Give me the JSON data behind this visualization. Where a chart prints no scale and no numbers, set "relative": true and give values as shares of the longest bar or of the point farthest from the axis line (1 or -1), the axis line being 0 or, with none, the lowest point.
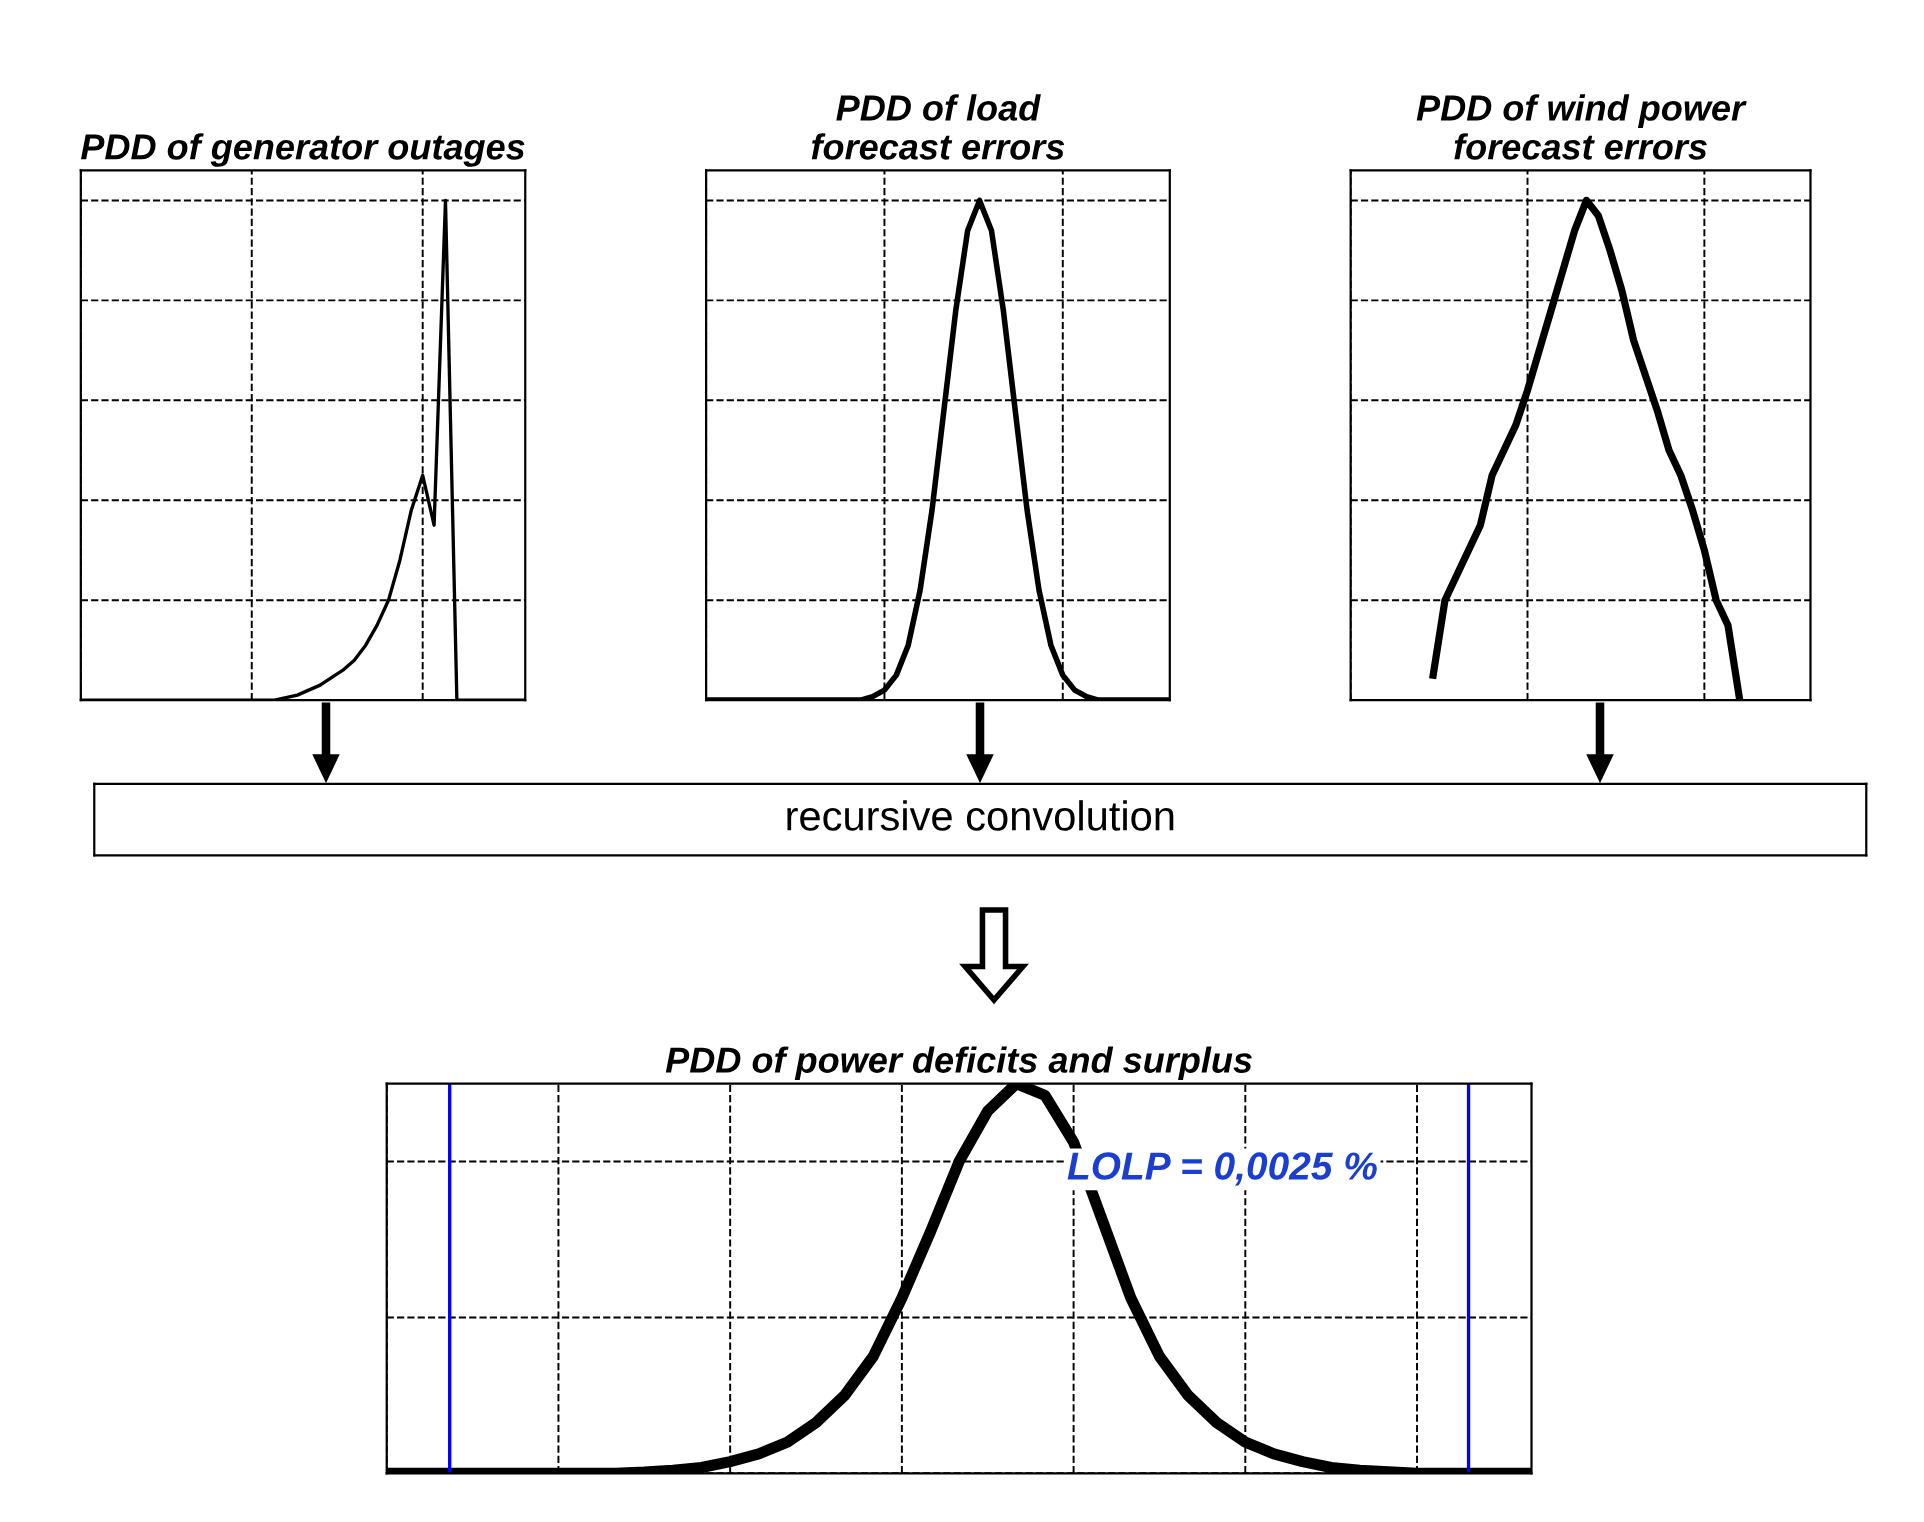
{
  "chart_data": [
    {
      "type": "line",
      "title": "PDD of generator outages",
      "relative": true,
      "grid": true,
      "marker": "none",
      "line_style": "solid",
      "categories": [
        null,
        null,
        null,
        null,
        null,
        null,
        null,
        null,
        null,
        null,
        null,
        null,
        null,
        null,
        null,
        null,
        null,
        null,
        null,
        null,
        null,
        null,
        null,
        null,
        null,
        null,
        null,
        null,
        null,
        null,
        null,
        null,
        null,
        null,
        null,
        null,
        null,
        null,
        null,
        null
      ],
      "series": [
        {
          "color": "#000000",
          "values": [
            0,
            0,
            0,
            0,
            0,
            0,
            0,
            0,
            0,
            0,
            0,
            0,
            0,
            0,
            0,
            0,
            0,
            0,
            0.005,
            0.01,
            0.02,
            0.03,
            0.045,
            0.06,
            0.08,
            0.11,
            0.15,
            0.2,
            0.28,
            0.38,
            0.45,
            0.35,
            1.0,
            0,
            0,
            0,
            0,
            0,
            0,
            0
          ]
        }
      ]
    },
    {
      "type": "line",
      "title": "PDD of load\nforecast errors",
      "relative": true,
      "grid": true,
      "marker": "none",
      "line_style": "solid",
      "categories": [
        null,
        null,
        null,
        null,
        null,
        null,
        null,
        null,
        null,
        null,
        null,
        null,
        null,
        null,
        null,
        null,
        null,
        null,
        null,
        null,
        null,
        null,
        null,
        null,
        null,
        null,
        null,
        null,
        null,
        null,
        null,
        null,
        null,
        null,
        null,
        null,
        null,
        null,
        null,
        null
      ],
      "series": [
        {
          "color": "#000000",
          "values": [
            0,
            0,
            0,
            0,
            0,
            0,
            0,
            0,
            0,
            0,
            0,
            0,
            0,
            0,
            0.007,
            0.02,
            0.05,
            0.11,
            0.22,
            0.38,
            0.58,
            0.78,
            0.94,
            1.0,
            0.94,
            0.78,
            0.58,
            0.38,
            0.22,
            0.11,
            0.05,
            0.02,
            0.007,
            0,
            0,
            0,
            0,
            0,
            0,
            0
          ]
        }
      ]
    },
    {
      "type": "line",
      "title": "PDD of wind power\nforecast errors",
      "relative": true,
      "grid": true,
      "marker": "none",
      "line_style": "solid",
      "categories": [
        null,
        null,
        null,
        null,
        null,
        null,
        null,
        null,
        null,
        null,
        null,
        null,
        null,
        null,
        null,
        null,
        null,
        null,
        null,
        null,
        null,
        null,
        null,
        null,
        null,
        null,
        null,
        null,
        null,
        null,
        null,
        null,
        null,
        null,
        null,
        null,
        null,
        null,
        null,
        null
      ],
      "series": [
        {
          "color": "#000000",
          "values": [
            null,
            null,
            null,
            null,
            null,
            null,
            null,
            0.05,
            0.2,
            0.25,
            0.3,
            0.35,
            0.45,
            0.5,
            0.55,
            0.62,
            0.7,
            0.78,
            0.86,
            0.94,
            1.0,
            0.97,
            0.9,
            0.82,
            0.72,
            0.65,
            0.58,
            0.5,
            0.45,
            0.38,
            0.3,
            0.2,
            0.15,
            0.0,
            null,
            null,
            null,
            null,
            null,
            null
          ]
        }
      ]
    },
    {
      "type": "other",
      "annotations": [
        "recursive convolution"
      ]
    },
    {
      "type": "line",
      "title": "PDD of power deficits and surplus",
      "relative": true,
      "grid": true,
      "marker": "none",
      "line_style": "solid",
      "categories": [
        null,
        null,
        null,
        null,
        null,
        null,
        null,
        null,
        null,
        null,
        null,
        null,
        null,
        null,
        null,
        null,
        null,
        null,
        null,
        null,
        null,
        null,
        null,
        null,
        null,
        null,
        null,
        null,
        null,
        null,
        null,
        null,
        null,
        null,
        null,
        null,
        null,
        null,
        null,
        null,
        null
      ],
      "series": [
        {
          "color": "#000000",
          "values": [
            0,
            0,
            0,
            0,
            0,
            0,
            0,
            0,
            0,
            0.003,
            0.008,
            0.015,
            0.03,
            0.05,
            0.08,
            0.13,
            0.2,
            0.3,
            0.45,
            0.62,
            0.8,
            0.93,
            1.0,
            0.97,
            0.85,
            0.65,
            0.45,
            0.3,
            0.2,
            0.13,
            0.08,
            0.05,
            0.03,
            0.015,
            0.008,
            0.004,
            0,
            0,
            0,
            0,
            0
          ]
        }
      ],
      "annotations": [
        "LOLP = 0,0025 %"
      ]
    }
  ]
}
